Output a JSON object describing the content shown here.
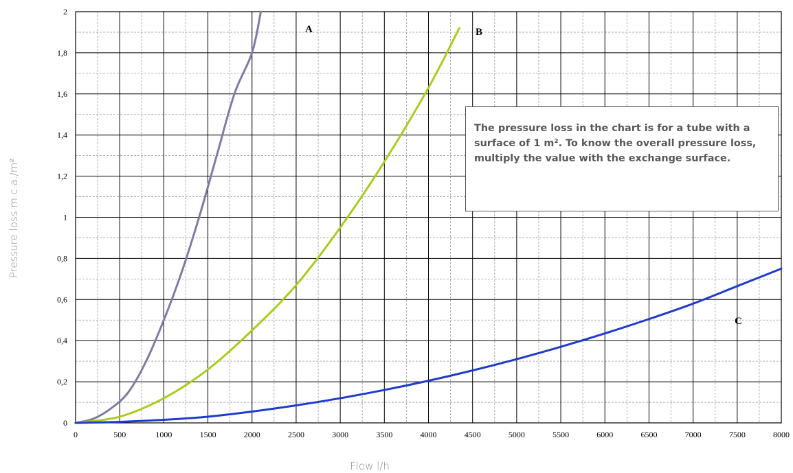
{
  "chart_data": {
    "type": "line",
    "xlabel": "Flow l/h",
    "ylabel": "Pressure loss m.c.a./m²",
    "xlim": [
      0,
      8000
    ],
    "ylim": [
      0,
      2
    ],
    "x_ticks": [
      "0",
      "500",
      "1000",
      "1500",
      "2000",
      "2500",
      "3000",
      "3500",
      "4000",
      "4500",
      "5000",
      "5500",
      "6000",
      "6500",
      "7000",
      "7500",
      "8000"
    ],
    "y_ticks": [
      "0",
      "0,2",
      "0,4",
      "0,6",
      "0,8",
      "1",
      "1,2",
      "1,4",
      "1,6",
      "1,8",
      "2"
    ],
    "grid": true,
    "series": [
      {
        "name": "A",
        "color": "#7c7ca6",
        "x": [
          0,
          200,
          400,
          600,
          800,
          1000,
          1200,
          1400,
          1600,
          1800,
          2000,
          2100
        ],
        "y": [
          0,
          0.02,
          0.07,
          0.15,
          0.3,
          0.5,
          0.73,
          1.0,
          1.3,
          1.6,
          1.8,
          2.0
        ]
      },
      {
        "name": "B",
        "color": "#a8cc1c",
        "x": [
          0,
          500,
          1000,
          1500,
          2000,
          2500,
          3000,
          3500,
          4000,
          4350
        ],
        "y": [
          0,
          0.03,
          0.12,
          0.26,
          0.45,
          0.67,
          0.95,
          1.27,
          1.63,
          1.92
        ]
      },
      {
        "name": "C",
        "color": "#1f3bcc",
        "x": [
          0,
          500,
          1000,
          1500,
          2000,
          2500,
          3000,
          3500,
          4000,
          4500,
          5000,
          5500,
          6000,
          6500,
          7000,
          7500,
          8000
        ],
        "y": [
          0,
          0.005,
          0.015,
          0.03,
          0.055,
          0.085,
          0.12,
          0.16,
          0.205,
          0.255,
          0.31,
          0.37,
          0.435,
          0.505,
          0.58,
          0.665,
          0.75
        ]
      }
    ],
    "annotation": "The pressure loss in the chart is for a tube with a surface of 1 m². To know the overall pressure loss, multiply the value with the exchange surface."
  }
}
